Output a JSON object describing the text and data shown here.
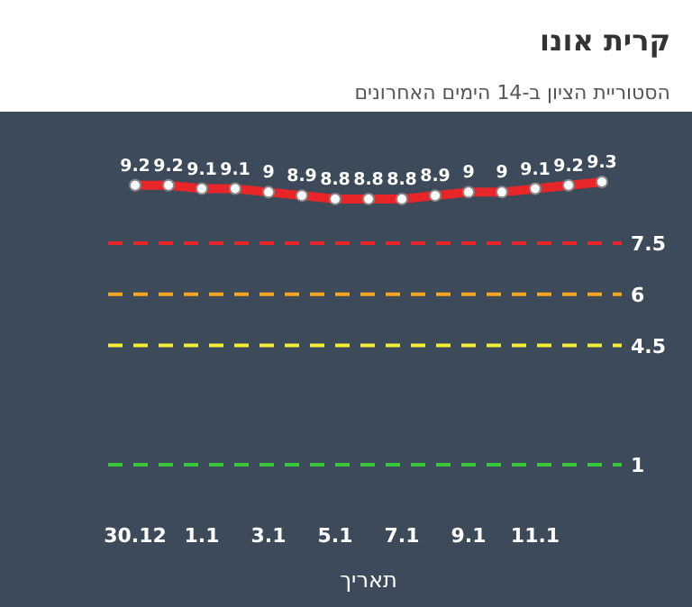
{
  "chart_data": {
    "type": "line",
    "title": "קרית אונו",
    "subtitle": "הסטוריית הציון ב-14 הימים האחרונים",
    "xlabel": "תאריך",
    "categories": [
      "30.12",
      null,
      "1.1",
      null,
      "3.1",
      null,
      "5.1",
      null,
      "7.1",
      null,
      "9.1",
      null,
      "11.1",
      null,
      null
    ],
    "series": [
      {
        "color": "#e8262a",
        "values": [
          9.2,
          9.2,
          9.1,
          9.1,
          9,
          8.9,
          8.8,
          8.8,
          8.8,
          8.9,
          9,
          9,
          9.1,
          9.2,
          9.3
        ]
      }
    ],
    "data_labels": true,
    "marker": "circle",
    "line_style": "solid",
    "ref_lines": [
      {
        "axis": "y",
        "value": 7.5,
        "label": "7.5",
        "color": "#e8262a",
        "line_style": "dashed"
      },
      {
        "axis": "y",
        "value": 6,
        "label": "6",
        "color": "#f5a623",
        "line_style": "dashed"
      },
      {
        "axis": "y",
        "value": 4.5,
        "label": "4.5",
        "color": "#f2ee3a",
        "line_style": "dashed"
      },
      {
        "axis": "y",
        "value": 1,
        "label": "1",
        "color": "#3cc83c",
        "line_style": "dashed"
      }
    ]
  }
}
